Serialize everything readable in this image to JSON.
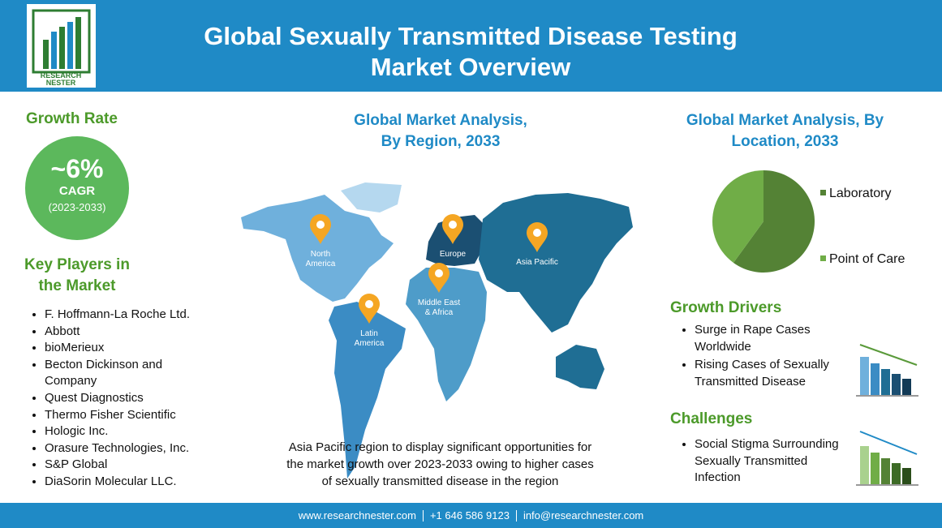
{
  "header": {
    "title_line1": "Global Sexually Transmitted Disease Testing",
    "title_line2": "Market Overview",
    "logo_line1": "RESEARCH",
    "logo_line2": "NESTER"
  },
  "growth_rate": {
    "heading": "Growth Rate",
    "value": "~6%",
    "label": "CAGR",
    "period": "(2023-2033)"
  },
  "key_players": {
    "heading_line1": "Key Players in",
    "heading_line2": "the Market",
    "items": [
      "F. Hoffmann-La Roche Ltd.",
      "Abbott",
      "bioMerieux",
      "Becton Dickinson and Company",
      "Quest Diagnostics",
      "Thermo Fisher Scientific",
      "Hologic Inc.",
      "Orasure Technologies, Inc.",
      "S&P Global",
      "DiaSorin Molecular LLC."
    ]
  },
  "region_map": {
    "title_line1": "Global Market Analysis,",
    "title_line2": "By Region, 2033",
    "regions": [
      [
        "North",
        "America"
      ],
      [
        "Europe"
      ],
      [
        "Asia Pacific"
      ],
      [
        "Middle East",
        "& Africa"
      ],
      [
        "Latin",
        "America"
      ]
    ],
    "caption_lines": [
      "Asia Pacific region to display significant opportunities for",
      "the market growth over 2023-2033  owing to higher cases",
      "of sexually transmitted disease in the region"
    ]
  },
  "chart_data": {
    "type": "pie",
    "title_lines": [
      "Global Market Analysis, By",
      "Location, 2033"
    ],
    "categories": [
      "Laboratory",
      "Point of Care"
    ],
    "values": [
      60,
      40
    ],
    "colors": [
      "#548235",
      "#70ad47"
    ]
  },
  "growth_drivers": {
    "heading": "Growth Drivers",
    "items": [
      [
        "Surge in Rape Cases",
        "Worldwide"
      ],
      [
        "Rising Cases of Sexually",
        "Transmitted Disease"
      ]
    ]
  },
  "challenges": {
    "heading": "Challenges",
    "items": [
      [
        "Social Stigma Surrounding",
        "Sexually Transmitted",
        "Infection"
      ]
    ]
  },
  "footer": {
    "website": "www.researchnester.com",
    "phone": "+1 646 586 9123",
    "email": "info@researchnester.com"
  }
}
